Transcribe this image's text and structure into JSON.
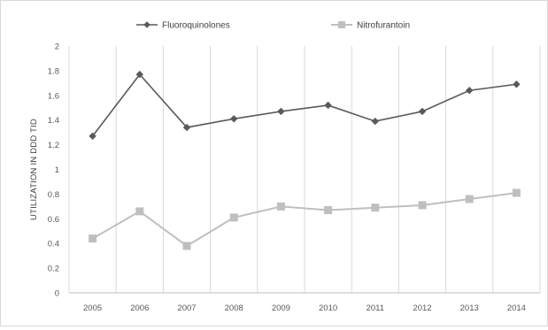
{
  "chart_data": {
    "type": "line",
    "title": "",
    "xlabel": "",
    "ylabel": "UTILIZATION IN DDD TID",
    "x": [
      "2005",
      "2006",
      "2007",
      "2008",
      "2009",
      "2010",
      "2011",
      "2012",
      "2013",
      "2014"
    ],
    "ylim": [
      0,
      2
    ],
    "yticks": [
      "0",
      "0.2",
      "0.4",
      "0.6",
      "0.8",
      "1",
      "1.2",
      "1.4",
      "1.6",
      "1.8",
      "2"
    ],
    "grid": "vertical",
    "legend_position": "top",
    "series": [
      {
        "name": "Fluoroquinolones",
        "color": "#595959",
        "marker": "diamond",
        "values": [
          1.27,
          1.77,
          1.34,
          1.41,
          1.47,
          1.52,
          1.39,
          1.47,
          1.64,
          1.69
        ]
      },
      {
        "name": "Nitrofurantoin",
        "color": "#bfbfbf",
        "marker": "square",
        "values": [
          0.44,
          0.66,
          0.38,
          0.61,
          0.7,
          0.67,
          0.69,
          0.71,
          0.76,
          0.81
        ]
      }
    ]
  }
}
